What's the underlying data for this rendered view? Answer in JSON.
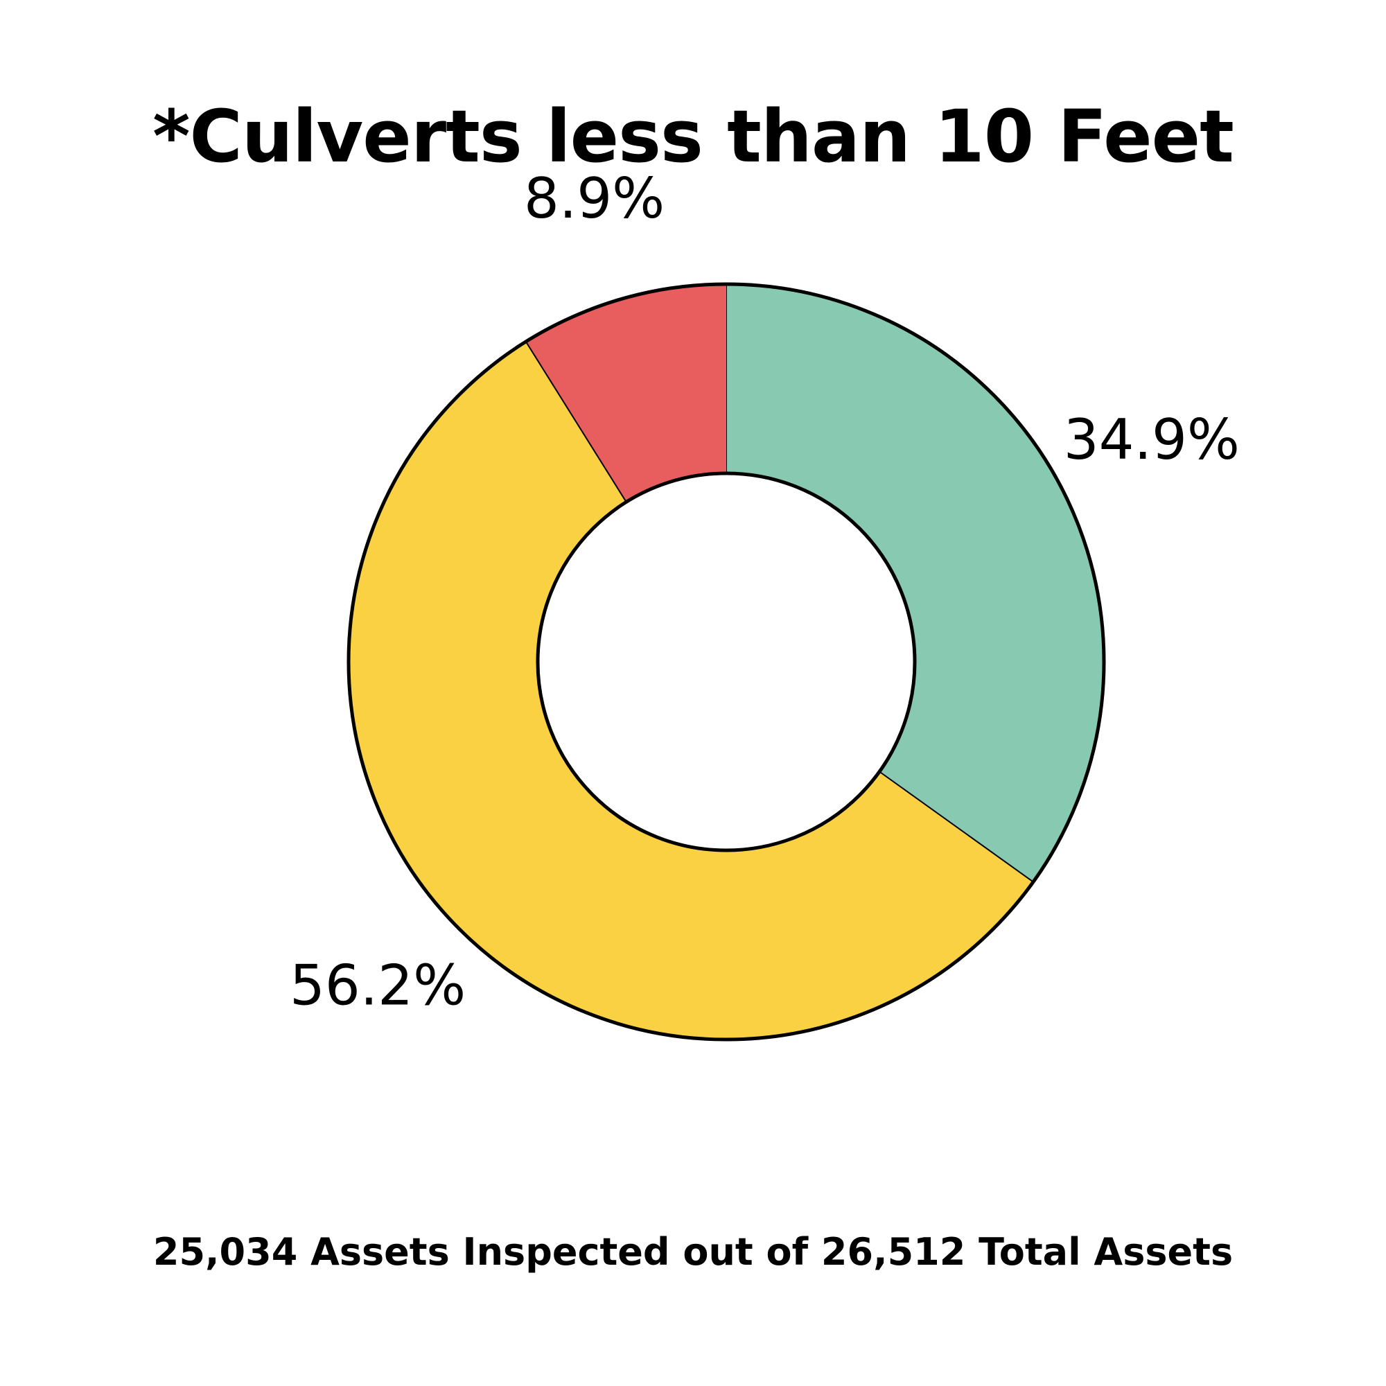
{
  "chart_data": {
    "type": "pie",
    "title": "*Culverts less than 10 Feet",
    "subtitle": "",
    "donut": true,
    "slices": [
      {
        "value": 34.9,
        "label": "34.9%",
        "color": "#88C9B1"
      },
      {
        "value": 56.2,
        "label": "56.2%",
        "color": "#F9D143"
      },
      {
        "value": 8.9,
        "label": "8.9%",
        "color": "#E85E5E"
      }
    ],
    "legend": "none",
    "outline_color": "#000000",
    "footnote": "25,034 Assets Inspected out of 26,512 Total Assets"
  }
}
